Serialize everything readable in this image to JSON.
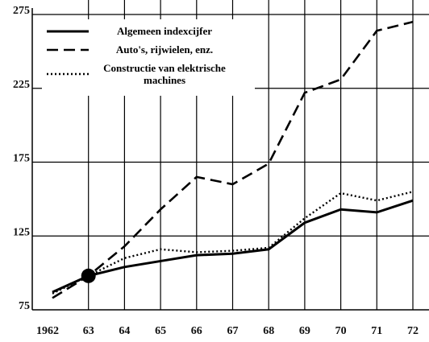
{
  "chart_data": {
    "type": "line",
    "categories": [
      "1962",
      "63",
      "64",
      "65",
      "66",
      "67",
      "68",
      "69",
      "70",
      "71",
      "72"
    ],
    "series": [
      {
        "name": "Algemeen indexcijfer",
        "color": "#000000",
        "style": "solid",
        "values": [
          87,
          98,
          104,
          108,
          112,
          113,
          116,
          134,
          143,
          141,
          149
        ]
      },
      {
        "name": "Auto's, rijwielen, enz.",
        "color": "#000000",
        "style": "dashed",
        "values": [
          83,
          98,
          118,
          143,
          165,
          160,
          174,
          222,
          231,
          264,
          270
        ]
      },
      {
        "name": "Constructie van elektrische machines",
        "color": "#000000",
        "style": "dotted",
        "values": [
          86,
          98,
          110,
          116,
          114,
          115,
          117,
          137,
          154,
          149,
          155
        ]
      }
    ],
    "ylim": [
      75,
      275
    ],
    "yticks": [
      75,
      125,
      175,
      225,
      275
    ],
    "grid": true
  }
}
